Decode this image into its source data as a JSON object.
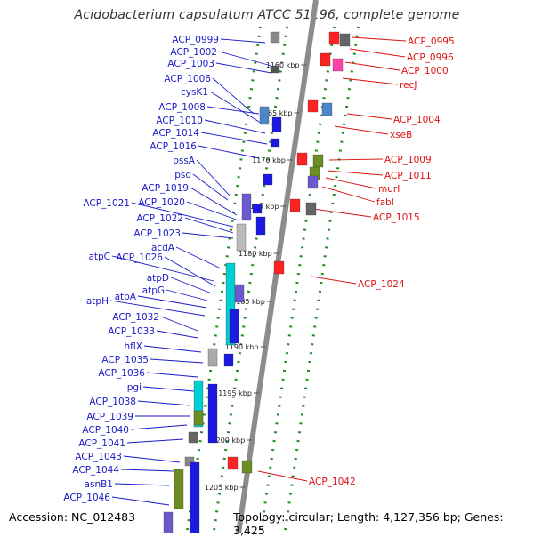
{
  "title": "Acidobacterium capsulatum ATCC 51196, complete genome",
  "accession": "Accession: NC_012483",
  "summary": "Topology: circular; Length: 4,127,356 bp; Genes: 3,425",
  "colors": {
    "left_labels": "#1a1ac8",
    "right_labels": "#dd1111",
    "backbone": "#8c8c8c",
    "ticks": "#228b22"
  },
  "scale_labels": [
    "1160 kbp",
    "1165 kbp",
    "1170 kbp",
    "1175 kbp",
    "1180 kbp",
    "1185 kbp",
    "1190 kbp",
    "1195 kbp",
    "1200 kbp",
    "1205 kbp"
  ],
  "left_genes": [
    "ACP_0999",
    "ACP_1002",
    "ACP_1003",
    "ACP_1006",
    "cysK1",
    "ACP_1008",
    "ACP_1010",
    "ACP_1014",
    "ACP_1016",
    "pssA",
    "psd",
    "ACP_1019",
    "ACP_1020",
    "ACP_1021",
    "ACP_1022",
    "ACP_1023",
    "acdA",
    "atpC",
    "ACP_1026",
    "atpD",
    "atpG",
    "atpA",
    "atpH",
    "ACP_1032",
    "ACP_1033",
    "hflX",
    "ACP_1035",
    "ACP_1036",
    "pgi",
    "ACP_1038",
    "ACP_1039",
    "ACP_1040",
    "ACP_1041",
    "ACP_1043",
    "ACP_1044",
    "asnB1",
    "ACP_1046"
  ],
  "right_genes": [
    "ACP_0995",
    "ACP_0996",
    "ACP_1000",
    "recJ",
    "ACP_1004",
    "xseB",
    "ACP_1009",
    "ACP_1011",
    "murI",
    "fabI",
    "ACP_1015",
    "ACP_1024",
    "ACP_1042"
  ]
}
